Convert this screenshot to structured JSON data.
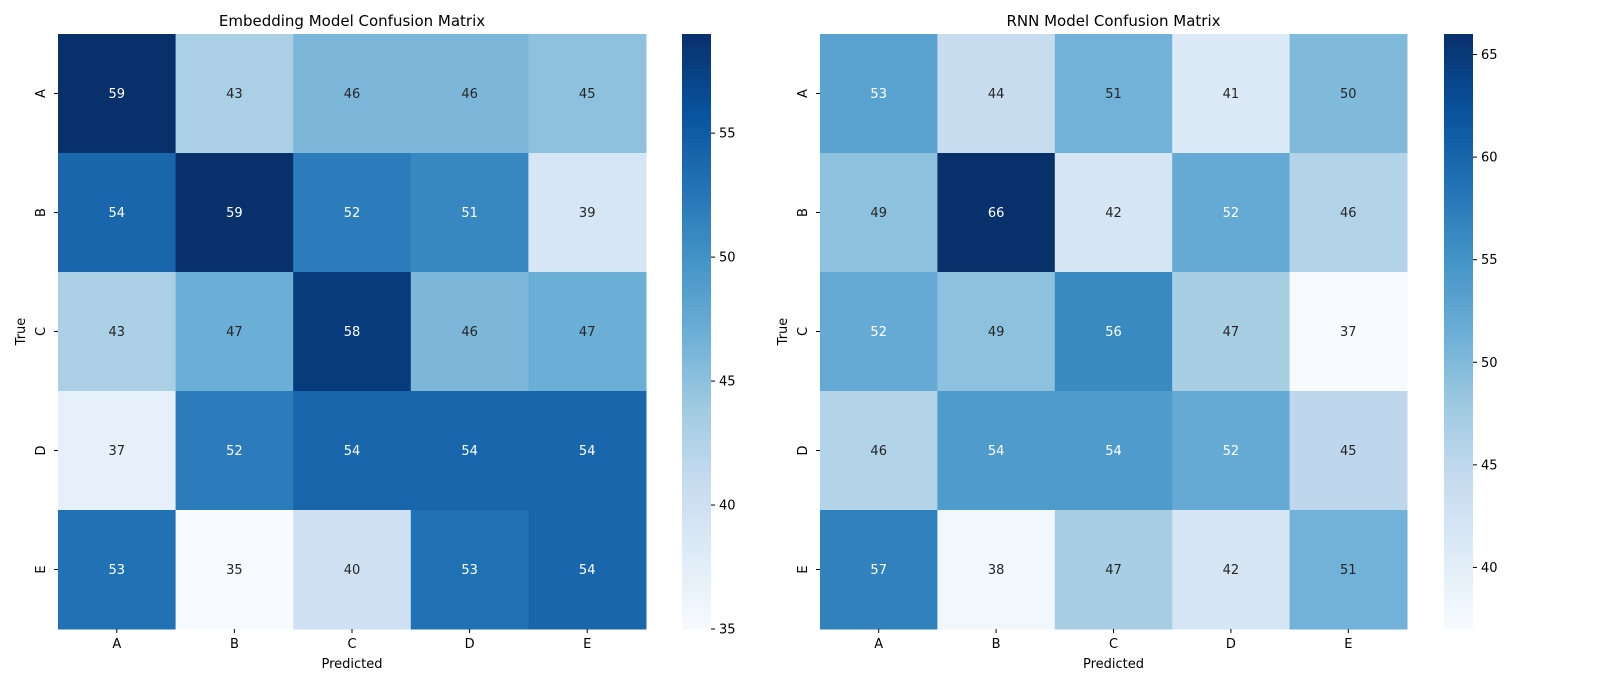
{
  "chart_data": [
    {
      "type": "heatmap",
      "title": "Embedding Model Confusion Matrix",
      "xlabel": "Predicted",
      "ylabel": "True",
      "x_categories": [
        "A",
        "B",
        "C",
        "D",
        "E"
      ],
      "y_categories": [
        "A",
        "B",
        "C",
        "D",
        "E"
      ],
      "values": [
        [
          59,
          43,
          46,
          46,
          45
        ],
        [
          54,
          59,
          52,
          51,
          39
        ],
        [
          43,
          47,
          58,
          46,
          47
        ],
        [
          37,
          52,
          54,
          54,
          54
        ],
        [
          53,
          35,
          40,
          53,
          54
        ]
      ],
      "vmin": 35,
      "vmax": 59,
      "colorbar_ticks": [
        35,
        40,
        45,
        50,
        55
      ],
      "colormap": "Blues"
    },
    {
      "type": "heatmap",
      "title": "RNN Model Confusion Matrix",
      "xlabel": "Predicted",
      "ylabel": "True",
      "x_categories": [
        "A",
        "B",
        "C",
        "D",
        "E"
      ],
      "y_categories": [
        "A",
        "B",
        "C",
        "D",
        "E"
      ],
      "values": [
        [
          53,
          44,
          51,
          41,
          50
        ],
        [
          49,
          66,
          42,
          52,
          46
        ],
        [
          52,
          49,
          56,
          47,
          37
        ],
        [
          46,
          54,
          54,
          52,
          45
        ],
        [
          57,
          38,
          47,
          42,
          51
        ]
      ],
      "vmin": 37,
      "vmax": 66,
      "colorbar_ticks": [
        40,
        45,
        50,
        55,
        60,
        65
      ],
      "colormap": "Blues"
    }
  ]
}
